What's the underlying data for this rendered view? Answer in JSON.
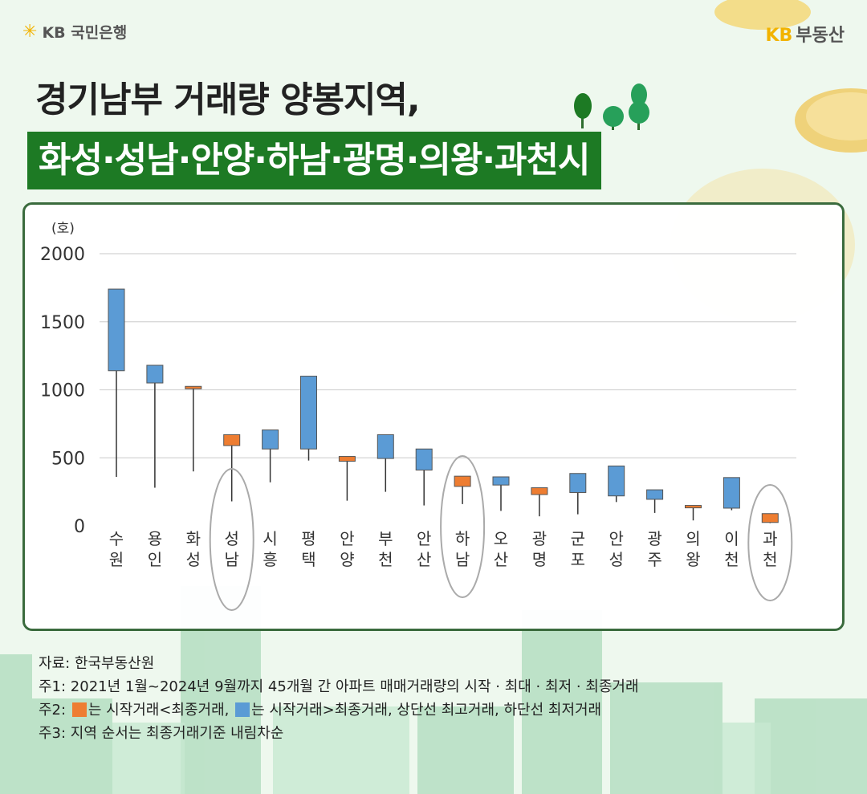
{
  "brand": {
    "left_logo": "KB 국민은행",
    "right_kb": "KB",
    "right_name": "부동산"
  },
  "title": {
    "line1": "경기남부 거래량 양봉지역,",
    "line2": "화성·성남·안양·하남·광명·의왕·과천시"
  },
  "colors": {
    "up": "#ee7d31",
    "down": "#5b9bd5",
    "title_bg": "#1d7a24",
    "panel_border": "#3a6b3d",
    "highlight": "#aaaaaa"
  },
  "chart_data": {
    "type": "candlestick",
    "unit": "(호)",
    "ylim": [
      0,
      2000
    ],
    "yticks": [
      0,
      500,
      1000,
      1500,
      2000
    ],
    "grid": true,
    "series": [
      {
        "region": "수원",
        "label": [
          "수",
          "원"
        ],
        "open": 1740,
        "close": 1140,
        "high": 1740,
        "low": 360,
        "up": false,
        "highlight": false
      },
      {
        "region": "용인",
        "label": [
          "용",
          "인"
        ],
        "open": 1180,
        "close": 1050,
        "high": 1180,
        "low": 280,
        "up": false,
        "highlight": false
      },
      {
        "region": "화성",
        "label": [
          "화",
          "성"
        ],
        "open": 1010,
        "close": 1025,
        "high": 1025,
        "low": 400,
        "up": true,
        "highlight": false
      },
      {
        "region": "성남",
        "label": [
          "성",
          "남"
        ],
        "open": 590,
        "close": 670,
        "high": 670,
        "low": 180,
        "up": true,
        "highlight": true
      },
      {
        "region": "시흥",
        "label": [
          "시",
          "흥"
        ],
        "open": 705,
        "close": 565,
        "high": 705,
        "low": 320,
        "up": false,
        "highlight": false
      },
      {
        "region": "평택",
        "label": [
          "평",
          "택"
        ],
        "open": 1100,
        "close": 565,
        "high": 1100,
        "low": 480,
        "up": false,
        "highlight": false
      },
      {
        "region": "안양",
        "label": [
          "안",
          "양"
        ],
        "open": 475,
        "close": 510,
        "high": 510,
        "low": 185,
        "up": true,
        "highlight": false
      },
      {
        "region": "부천",
        "label": [
          "부",
          "천"
        ],
        "open": 670,
        "close": 495,
        "high": 670,
        "low": 250,
        "up": false,
        "highlight": false
      },
      {
        "region": "안산",
        "label": [
          "안",
          "산"
        ],
        "open": 565,
        "close": 410,
        "high": 565,
        "low": 150,
        "up": false,
        "highlight": false
      },
      {
        "region": "하남",
        "label": [
          "하",
          "남"
        ],
        "open": 290,
        "close": 365,
        "high": 365,
        "low": 160,
        "up": true,
        "highlight": true
      },
      {
        "region": "오산",
        "label": [
          "오",
          "산"
        ],
        "open": 360,
        "close": 300,
        "high": 360,
        "low": 110,
        "up": false,
        "highlight": false
      },
      {
        "region": "광명",
        "label": [
          "광",
          "명"
        ],
        "open": 230,
        "close": 280,
        "high": 280,
        "low": 70,
        "up": true,
        "highlight": false
      },
      {
        "region": "군포",
        "label": [
          "군",
          "포"
        ],
        "open": 385,
        "close": 245,
        "high": 385,
        "low": 85,
        "up": false,
        "highlight": false
      },
      {
        "region": "안성",
        "label": [
          "안",
          "성"
        ],
        "open": 440,
        "close": 220,
        "high": 440,
        "low": 175,
        "up": false,
        "highlight": false
      },
      {
        "region": "광주",
        "label": [
          "광",
          "주"
        ],
        "open": 265,
        "close": 195,
        "high": 265,
        "low": 95,
        "up": false,
        "highlight": false
      },
      {
        "region": "의왕",
        "label": [
          "의",
          "왕"
        ],
        "open": 140,
        "close": 150,
        "high": 150,
        "low": 40,
        "up": true,
        "highlight": false
      },
      {
        "region": "이천",
        "label": [
          "이",
          "천"
        ],
        "open": 355,
        "close": 130,
        "high": 355,
        "low": 115,
        "up": false,
        "highlight": false
      },
      {
        "region": "과천",
        "label": [
          "과",
          "천"
        ],
        "open": 25,
        "close": 90,
        "high": 90,
        "low": 20,
        "up": true,
        "highlight": true
      }
    ]
  },
  "notes": {
    "source": "자료: 한국부동산원",
    "n1": "주1: 2021년 1월~2024년 9월까지 45개월 간 아파트 매매거래량의 시작 · 최대 · 최저 · 최종거래",
    "n2_prefix": "주2: ",
    "n2_a": "는 시작거래<최종거래, ",
    "n2_b": "는 시작거래>최종거래, 상단선 최고거래, 하단선 최저거래",
    "n3": "주3: 지역 순서는 최종거래기준 내림차순"
  }
}
